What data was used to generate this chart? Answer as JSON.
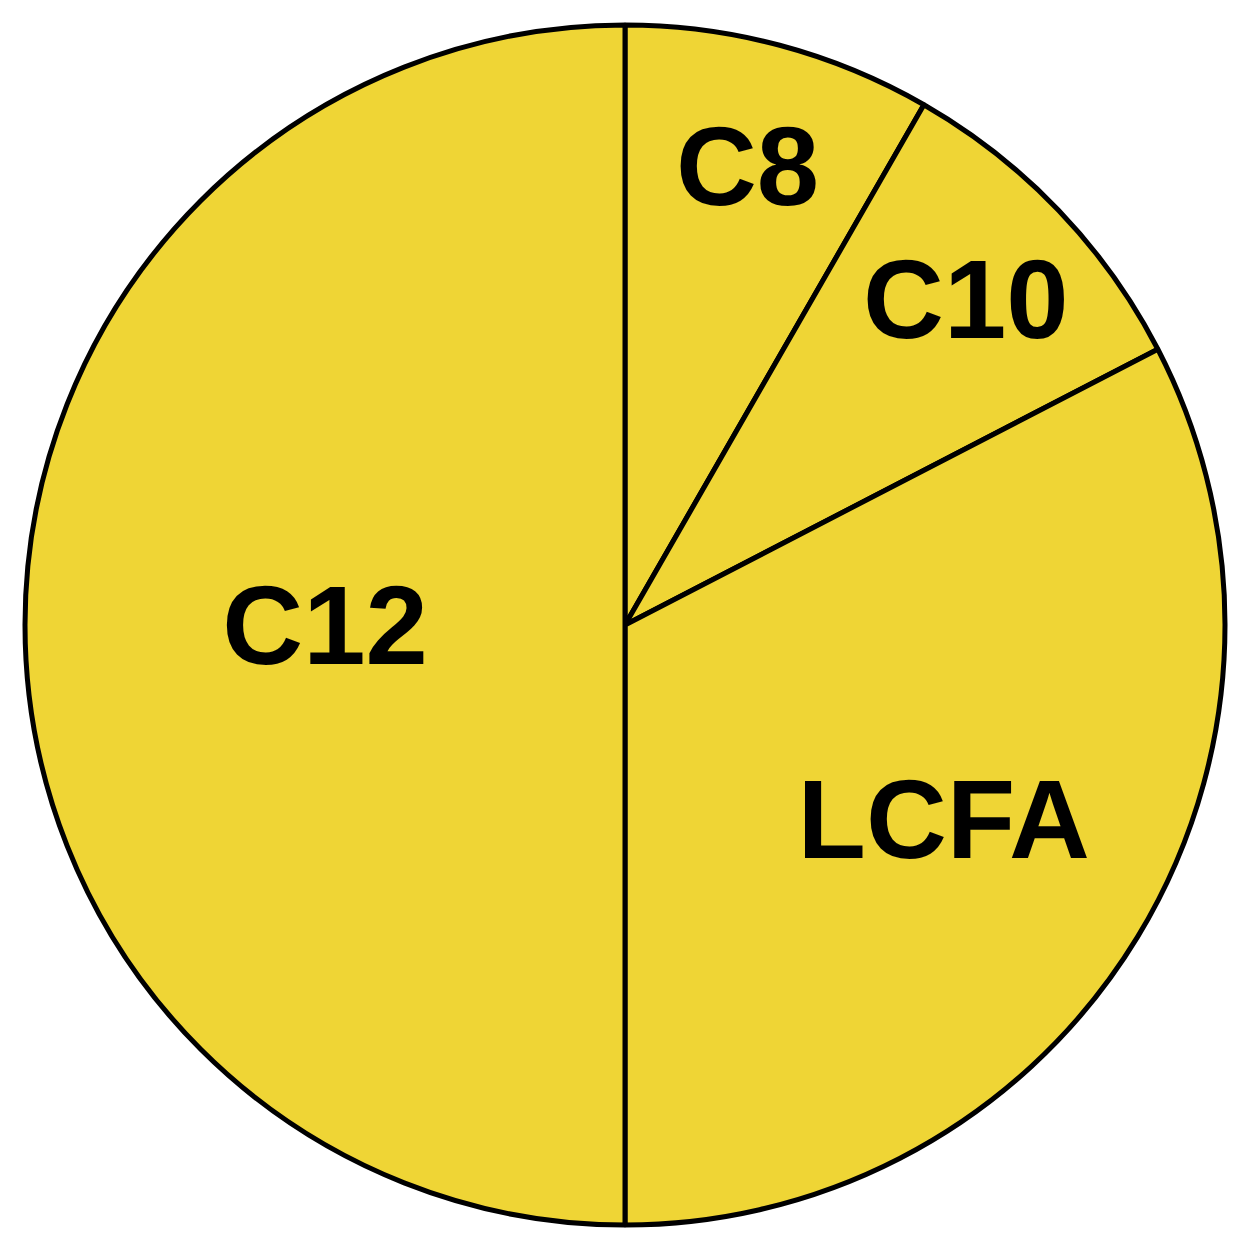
{
  "chart_data": {
    "type": "pie",
    "categories": [
      "C8",
      "C10",
      "LCFA",
      "C12"
    ],
    "values": [
      8.3,
      9.1,
      32.6,
      50
    ],
    "colors": [
      "#efd535",
      "#efd535",
      "#efd535",
      "#efd535"
    ]
  }
}
